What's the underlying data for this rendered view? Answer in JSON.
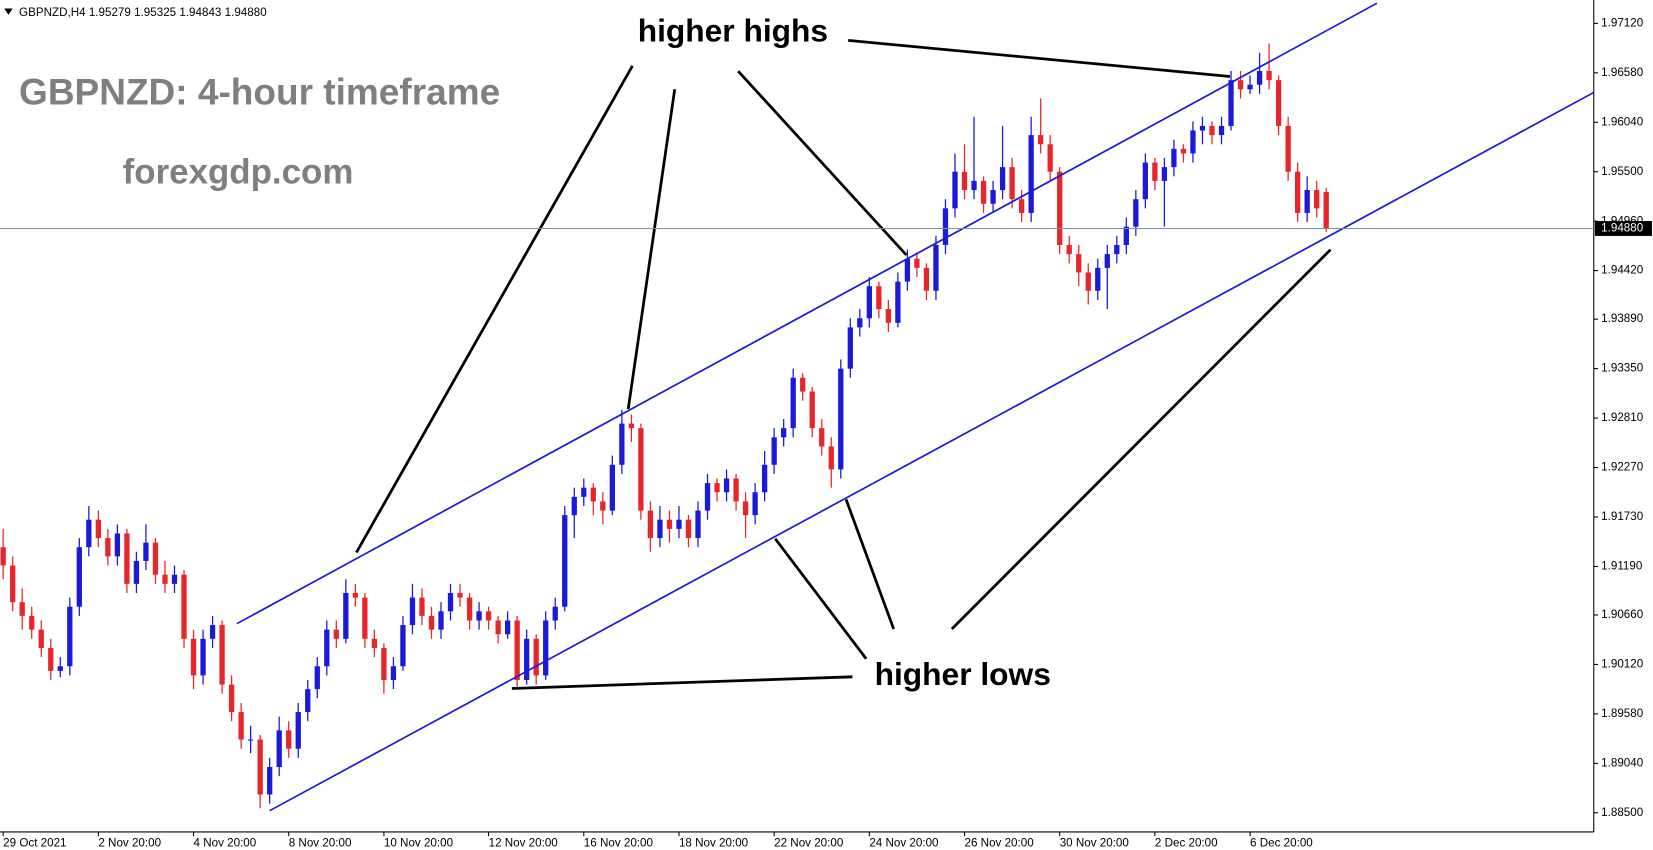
{
  "chart_data": {
    "type": "candlestick",
    "header": "GBPNZD,H4  1.95279 1.95325 1.94843 1.94880",
    "title": "GBPNZD: 4-hour timeframe",
    "subtitle": "forexgdp.com",
    "annotations": [
      "higher highs",
      "higher lows"
    ],
    "up_color": "#1a1ad8",
    "down_color": "#e8262a",
    "ylim": [
      1.88291,
      1.97317
    ],
    "yticks": [
      {
        "value": 1.9712,
        "label": "1.97120"
      },
      {
        "value": 1.9658,
        "label": "1.96580"
      },
      {
        "value": 1.9604,
        "label": "1.96040"
      },
      {
        "value": 1.955,
        "label": "1.95500"
      },
      {
        "value": 1.9496,
        "label": "1.94960"
      },
      {
        "value": 1.9442,
        "label": "1.94420"
      },
      {
        "value": 1.9389,
        "label": "1.93890"
      },
      {
        "value": 1.9335,
        "label": "1.93350"
      },
      {
        "value": 1.9281,
        "label": "1.92810"
      },
      {
        "value": 1.9227,
        "label": "1.92270"
      },
      {
        "value": 1.9173,
        "label": "1.91730"
      },
      {
        "value": 1.9119,
        "label": "1.91190"
      },
      {
        "value": 1.9066,
        "label": "1.90660"
      },
      {
        "value": 1.9012,
        "label": "1.90120"
      },
      {
        "value": 1.8958,
        "label": "1.89580"
      },
      {
        "value": 1.8904,
        "label": "1.89040"
      },
      {
        "value": 1.885,
        "label": "1.88500"
      }
    ],
    "current_price": {
      "value": 1.9488,
      "label": "1.94880"
    },
    "categories": [
      "29 Oct 2021",
      null,
      null,
      null,
      null,
      null,
      null,
      null,
      null,
      null,
      "2 Nov 20:00",
      null,
      null,
      null,
      null,
      null,
      null,
      null,
      null,
      null,
      "4 Nov 20:00",
      null,
      null,
      null,
      null,
      null,
      null,
      null,
      null,
      null,
      "8 Nov 20:00",
      null,
      null,
      null,
      null,
      null,
      null,
      null,
      null,
      null,
      "10 Nov 20:00",
      null,
      null,
      null,
      null,
      null,
      null,
      null,
      null,
      null,
      null,
      "12 Nov 20:00",
      null,
      null,
      null,
      null,
      null,
      null,
      null,
      null,
      null,
      "16 Nov 20:00",
      null,
      null,
      null,
      null,
      null,
      null,
      null,
      null,
      null,
      "18 Nov 20:00",
      null,
      null,
      null,
      null,
      null,
      null,
      null,
      null,
      null,
      "22 Nov 20:00",
      null,
      null,
      null,
      null,
      null,
      null,
      null,
      null,
      null,
      "24 Nov 20:00",
      null,
      null,
      null,
      null,
      null,
      null,
      null,
      null,
      null,
      "26 Nov 20:00",
      null,
      null,
      null,
      null,
      null,
      null,
      null,
      null,
      null,
      "30 Nov 20:00",
      null,
      null,
      null,
      null,
      null,
      null,
      null,
      null,
      null,
      "2 Dec 20:00",
      null,
      null,
      null,
      null,
      null,
      null,
      null,
      null,
      null,
      "6 Dec 20:00",
      null,
      null,
      null,
      null,
      null,
      null,
      null,
      null
    ],
    "ohlc": [
      [
        1.914,
        1.916,
        1.9105,
        1.912
      ],
      [
        1.912,
        1.913,
        1.907,
        1.908
      ],
      [
        1.908,
        1.9095,
        1.905,
        1.9065
      ],
      [
        1.9065,
        1.9075,
        1.904,
        1.905
      ],
      [
        1.905,
        1.906,
        1.902,
        1.903
      ],
      [
        1.903,
        1.904,
        1.8995,
        1.9005
      ],
      [
        1.9005,
        1.902,
        1.8998,
        1.901
      ],
      [
        1.901,
        1.9085,
        1.9,
        1.9075
      ],
      [
        1.9075,
        1.915,
        1.9065,
        1.914
      ],
      [
        1.914,
        1.9185,
        1.913,
        1.917
      ],
      [
        1.917,
        1.918,
        1.914,
        1.915
      ],
      [
        1.915,
        1.916,
        1.912,
        1.913
      ],
      [
        1.913,
        1.9165,
        1.912,
        1.9155
      ],
      [
        1.9155,
        1.916,
        1.909,
        1.91
      ],
      [
        1.91,
        1.9135,
        1.909,
        1.9125
      ],
      [
        1.9125,
        1.9165,
        1.9115,
        1.9145
      ],
      [
        1.9145,
        1.915,
        1.91,
        1.911
      ],
      [
        1.911,
        1.9125,
        1.909,
        1.91
      ],
      [
        1.91,
        1.912,
        1.909,
        1.911
      ],
      [
        1.911,
        1.9115,
        1.903,
        1.904
      ],
      [
        1.904,
        1.905,
        1.8985,
        1.9
      ],
      [
        1.9,
        1.905,
        1.899,
        1.904
      ],
      [
        1.904,
        1.9065,
        1.903,
        1.9055
      ],
      [
        1.9055,
        1.906,
        1.898,
        1.899
      ],
      [
        1.899,
        1.9,
        1.895,
        1.896
      ],
      [
        1.896,
        1.897,
        1.892,
        1.893
      ],
      [
        1.893,
        1.8945,
        1.8915,
        1.893
      ],
      [
        1.893,
        1.8935,
        1.8855,
        1.887
      ],
      [
        1.887,
        1.891,
        1.886,
        1.89
      ],
      [
        1.89,
        1.8955,
        1.889,
        1.894
      ],
      [
        1.894,
        1.895,
        1.891,
        1.892
      ],
      [
        1.892,
        1.897,
        1.891,
        1.896
      ],
      [
        1.896,
        1.8995,
        1.895,
        1.8985
      ],
      [
        1.8985,
        1.902,
        1.8975,
        1.901
      ],
      [
        1.901,
        1.906,
        1.9,
        1.905
      ],
      [
        1.905,
        1.906,
        1.903,
        1.904
      ],
      [
        1.904,
        1.9105,
        1.9035,
        1.909
      ],
      [
        1.909,
        1.91,
        1.9075,
        1.9085
      ],
      [
        1.9085,
        1.909,
        1.903,
        1.904
      ],
      [
        1.904,
        1.905,
        1.902,
        1.903
      ],
      [
        1.903,
        1.9035,
        1.898,
        1.8995
      ],
      [
        1.8995,
        1.902,
        1.8985,
        1.901
      ],
      [
        1.901,
        1.9065,
        1.9005,
        1.9055
      ],
      [
        1.9055,
        1.91,
        1.9045,
        1.9085
      ],
      [
        1.9085,
        1.9095,
        1.9055,
        1.9065
      ],
      [
        1.9065,
        1.9075,
        1.904,
        1.905
      ],
      [
        1.905,
        1.908,
        1.904,
        1.907
      ],
      [
        1.907,
        1.91,
        1.906,
        1.909
      ],
      [
        1.909,
        1.91,
        1.9075,
        1.9085
      ],
      [
        1.9085,
        1.909,
        1.905,
        1.906
      ],
      [
        1.906,
        1.908,
        1.905,
        1.907
      ],
      [
        1.907,
        1.9075,
        1.905,
        1.906
      ],
      [
        1.906,
        1.9065,
        1.9035,
        1.9045
      ],
      [
        1.9045,
        1.907,
        1.904,
        1.906
      ],
      [
        1.906,
        1.9065,
        1.8985,
        1.8995
      ],
      [
        1.8995,
        1.905,
        1.899,
        1.904
      ],
      [
        1.904,
        1.9045,
        1.899,
        1.9
      ],
      [
        1.9,
        1.907,
        1.8995,
        1.906
      ],
      [
        1.906,
        1.9085,
        1.905,
        1.9075
      ],
      [
        1.9075,
        1.9185,
        1.907,
        1.9175
      ],
      [
        1.9175,
        1.9205,
        1.915,
        1.9195
      ],
      [
        1.9195,
        1.9215,
        1.9185,
        1.9205
      ],
      [
        1.9205,
        1.921,
        1.9175,
        1.919
      ],
      [
        1.919,
        1.92,
        1.9165,
        1.918
      ],
      [
        1.918,
        1.924,
        1.9175,
        1.923
      ],
      [
        1.923,
        1.929,
        1.922,
        1.9275
      ],
      [
        1.9275,
        1.9285,
        1.9255,
        1.927
      ],
      [
        1.927,
        1.9275,
        1.917,
        1.918
      ],
      [
        1.918,
        1.919,
        1.9135,
        1.915
      ],
      [
        1.915,
        1.9185,
        1.914,
        1.917
      ],
      [
        1.917,
        1.918,
        1.9145,
        1.916
      ],
      [
        1.916,
        1.9185,
        1.915,
        1.917
      ],
      [
        1.917,
        1.9175,
        1.914,
        1.915
      ],
      [
        1.915,
        1.919,
        1.914,
        1.918
      ],
      [
        1.918,
        1.922,
        1.917,
        1.921
      ],
      [
        1.921,
        1.9215,
        1.919,
        1.92
      ],
      [
        1.92,
        1.9225,
        1.919,
        1.9215
      ],
      [
        1.9215,
        1.922,
        1.918,
        1.919
      ],
      [
        1.919,
        1.92,
        1.915,
        1.9175
      ],
      [
        1.9175,
        1.921,
        1.9165,
        1.92
      ],
      [
        1.92,
        1.9245,
        1.919,
        1.923
      ],
      [
        1.923,
        1.927,
        1.922,
        1.926
      ],
      [
        1.926,
        1.928,
        1.925,
        1.927
      ],
      [
        1.927,
        1.9335,
        1.926,
        1.9325
      ],
      [
        1.9325,
        1.933,
        1.93,
        1.931
      ],
      [
        1.931,
        1.9315,
        1.926,
        1.927
      ],
      [
        1.927,
        1.928,
        1.924,
        1.925
      ],
      [
        1.925,
        1.926,
        1.9205,
        1.9225
      ],
      [
        1.9225,
        1.9345,
        1.9215,
        1.9335
      ],
      [
        1.9335,
        1.939,
        1.9325,
        1.938
      ],
      [
        1.938,
        1.94,
        1.937,
        1.939
      ],
      [
        1.939,
        1.9435,
        1.938,
        1.9425
      ],
      [
        1.9425,
        1.943,
        1.939,
        1.94
      ],
      [
        1.94,
        1.941,
        1.9375,
        1.9385
      ],
      [
        1.9385,
        1.944,
        1.938,
        1.943
      ],
      [
        1.943,
        1.9465,
        1.942,
        1.9455
      ],
      [
        1.9455,
        1.9462,
        1.9435,
        1.9445
      ],
      [
        1.9445,
        1.945,
        1.941,
        1.942
      ],
      [
        1.942,
        1.948,
        1.941,
        1.947
      ],
      [
        1.947,
        1.952,
        1.946,
        1.951
      ],
      [
        1.951,
        1.957,
        1.95,
        1.955
      ],
      [
        1.955,
        1.958,
        1.952,
        1.953
      ],
      [
        1.953,
        1.961,
        1.952,
        1.954
      ],
      [
        1.954,
        1.9545,
        1.9505,
        1.9515
      ],
      [
        1.9515,
        1.954,
        1.9505,
        1.953
      ],
      [
        1.953,
        1.96,
        1.952,
        1.9555
      ],
      [
        1.9555,
        1.9565,
        1.951,
        1.952
      ],
      [
        1.952,
        1.953,
        1.9495,
        1.9505
      ],
      [
        1.9505,
        1.961,
        1.9495,
        1.959
      ],
      [
        1.959,
        1.963,
        1.957,
        1.958
      ],
      [
        1.958,
        1.959,
        1.954,
        1.955
      ],
      [
        1.955,
        1.9555,
        1.946,
        1.947
      ],
      [
        1.947,
        1.948,
        1.945,
        1.946
      ],
      [
        1.946,
        1.947,
        1.9425,
        1.944
      ],
      [
        1.944,
        1.945,
        1.9405,
        1.942
      ],
      [
        1.942,
        1.9455,
        1.941,
        1.9445
      ],
      [
        1.9445,
        1.947,
        1.94,
        1.946
      ],
      [
        1.946,
        1.948,
        1.945,
        1.947
      ],
      [
        1.947,
        1.95,
        1.946,
        1.949
      ],
      [
        1.949,
        1.953,
        1.948,
        1.952
      ],
      [
        1.952,
        1.957,
        1.951,
        1.956
      ],
      [
        1.956,
        1.9565,
        1.953,
        1.954
      ],
      [
        1.954,
        1.9565,
        1.949,
        1.9555
      ],
      [
        1.9555,
        1.9585,
        1.9545,
        1.9575
      ],
      [
        1.9575,
        1.958,
        1.956,
        1.957
      ],
      [
        1.957,
        1.9605,
        1.956,
        1.9595
      ],
      [
        1.9595,
        1.961,
        1.958,
        1.96
      ],
      [
        1.96,
        1.9605,
        1.958,
        1.959
      ],
      [
        1.959,
        1.961,
        1.958,
        1.96
      ],
      [
        1.96,
        1.966,
        1.9595,
        1.965
      ],
      [
        1.965,
        1.966,
        1.963,
        1.964
      ],
      [
        1.964,
        1.9655,
        1.9635,
        1.9645
      ],
      [
        1.9645,
        1.968,
        1.9635,
        1.966
      ],
      [
        1.966,
        1.969,
        1.964,
        1.965
      ],
      [
        1.965,
        1.9655,
        1.959,
        1.96
      ],
      [
        1.96,
        1.961,
        1.954,
        1.955
      ],
      [
        1.955,
        1.956,
        1.9495,
        1.9505
      ],
      [
        1.9505,
        1.9545,
        1.9495,
        1.953
      ],
      [
        1.953,
        1.954,
        1.95,
        1.951
      ],
      [
        1.95279,
        1.95325,
        1.94843,
        1.9488
      ]
    ]
  }
}
